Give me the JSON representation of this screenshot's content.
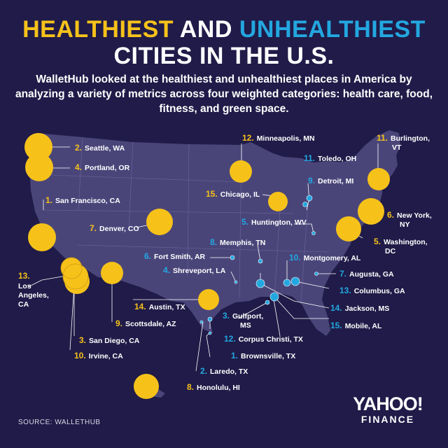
{
  "title": {
    "part1": "HEALTHIEST",
    "part2": " AND ",
    "part3": "UNHEALTHIEST",
    "line2": "CITIES IN THE U.S."
  },
  "subtitle": "WalletHub looked at the healthiest and unhealthiest places in America by analyzing a variety of metrics across four weighted categories: health care, food, fitness, and green space.",
  "colors": {
    "healthiest": "#f6c21a",
    "unhealthiest": "#23a7e0",
    "map": "#4a4579",
    "background": "#201b48"
  },
  "healthiest": [
    {
      "rank": "1.",
      "city": "San Francisco, CA"
    },
    {
      "rank": "2.",
      "city": "Seattle, WA"
    },
    {
      "rank": "3.",
      "city": "San Diego, CA"
    },
    {
      "rank": "4.",
      "city": "Portland, OR"
    },
    {
      "rank": "5.",
      "city": "Washington, DC"
    },
    {
      "rank": "6.",
      "city": "New York, NY"
    },
    {
      "rank": "7.",
      "city": "Denver, CO"
    },
    {
      "rank": "8.",
      "city": "Honolulu, HI"
    },
    {
      "rank": "9.",
      "city": "Scottsdale, AZ"
    },
    {
      "rank": "10.",
      "city": "Irvine, CA"
    },
    {
      "rank": "11.",
      "city": "Burlington, VT"
    },
    {
      "rank": "12.",
      "city": "Minneapolis, MN"
    },
    {
      "rank": "13.",
      "city": "Los Angeles, CA"
    },
    {
      "rank": "14.",
      "city": "Austin, TX"
    },
    {
      "rank": "15.",
      "city": "Chicago, IL"
    }
  ],
  "unhealthiest": [
    {
      "rank": "1.",
      "city": "Brownsville, TX"
    },
    {
      "rank": "2.",
      "city": "Laredo, TX"
    },
    {
      "rank": "3.",
      "city": "Gulfport, MS"
    },
    {
      "rank": "4.",
      "city": "Shreveport, LA"
    },
    {
      "rank": "5.",
      "city": "Huntington, WV"
    },
    {
      "rank": "6.",
      "city": "Fort Smith, AR"
    },
    {
      "rank": "7.",
      "city": "Augusta, GA"
    },
    {
      "rank": "8.",
      "city": "Memphis, TN"
    },
    {
      "rank": "9.",
      "city": "Detroit, MI"
    },
    {
      "rank": "10.",
      "city": "Montgomery, AL"
    },
    {
      "rank": "11.",
      "city": "Toledo, OH"
    },
    {
      "rank": "12.",
      "city": "Corpus Christi, TX"
    },
    {
      "rank": "13.",
      "city": "Columbus, GA"
    },
    {
      "rank": "14.",
      "city": "Jackson, MS"
    },
    {
      "rank": "15.",
      "city": "Mobile, AL"
    }
  ],
  "source": "SOURCE:  WALLETHUB",
  "logo": {
    "main": "YAHOO!",
    "sub": "FINANCE"
  }
}
